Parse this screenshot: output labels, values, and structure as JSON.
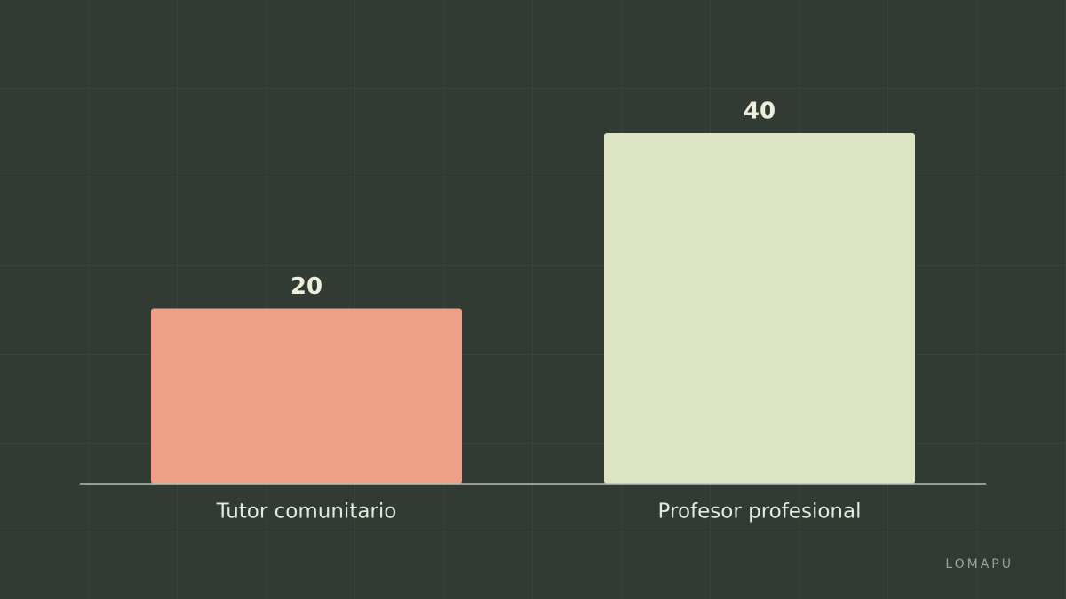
{
  "chart_data": {
    "type": "bar",
    "categories": [
      "Tutor comunitario",
      "Profesor profesional"
    ],
    "values": [
      20,
      40
    ],
    "colors": [
      "#ee9f85",
      "#dde4c3"
    ],
    "ylim": [
      0,
      40
    ],
    "watermark": "LOMAPU"
  }
}
